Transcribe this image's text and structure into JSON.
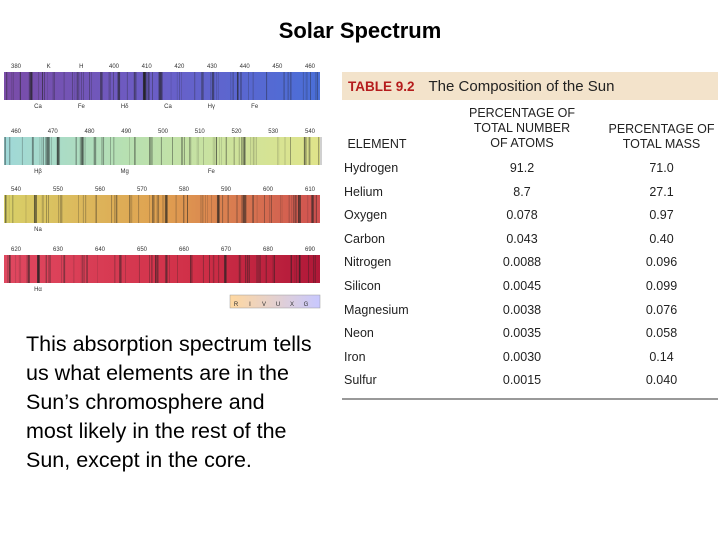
{
  "title": "Solar Spectrum",
  "spectrum": {
    "strips": [
      {
        "top": [
          "380",
          "K",
          "H",
          "400",
          "410",
          "420",
          "430",
          "440",
          "450",
          "460"
        ],
        "bottom": [
          "Ca",
          "Fe",
          "Hδ",
          "Ca",
          "Hγ",
          "Fe"
        ]
      },
      {
        "top": [
          "460",
          "470",
          "480",
          "490",
          "500",
          "510",
          "520",
          "530",
          "540"
        ],
        "bottom": [
          "Hβ",
          "Mg",
          "Fe"
        ]
      },
      {
        "top": [
          "540",
          "550",
          "560",
          "570",
          "580",
          "590",
          "600",
          "610"
        ],
        "bottom": [
          "Na"
        ]
      },
      {
        "top": [
          "620",
          "630",
          "640",
          "650",
          "660",
          "670",
          "680",
          "690"
        ],
        "bottom": [
          "Hα"
        ]
      }
    ],
    "bands": [
      "R",
      "I",
      "V",
      "U",
      "X",
      "G"
    ]
  },
  "body": "This absorption spectrum tells us what elements are in the Sun’s chromosphere and most likely in the rest of the Sun, except in the core.",
  "table": {
    "label": "TABLE 9.2",
    "title": "The Composition of the Sun",
    "headers": [
      "ELEMENT",
      "PERCENTAGE OF TOTAL NUMBER OF ATOMS",
      "PERCENTAGE OF TOTAL MASS"
    ],
    "rows": [
      [
        "Hydrogen",
        "91.2",
        "71.0"
      ],
      [
        "Helium",
        "8.7",
        "27.1"
      ],
      [
        "Oxygen",
        "0.078",
        "0.97"
      ],
      [
        "Carbon",
        "0.043",
        "0.40"
      ],
      [
        "Nitrogen",
        "0.0088",
        "0.096"
      ],
      [
        "Silicon",
        "0.0045",
        "0.099"
      ],
      [
        "Magnesium",
        "0.0038",
        "0.076"
      ],
      [
        "Neon",
        "0.0035",
        "0.058"
      ],
      [
        "Iron",
        "0.0030",
        "0.14"
      ],
      [
        "Sulfur",
        "0.0015",
        "0.040"
      ]
    ]
  }
}
